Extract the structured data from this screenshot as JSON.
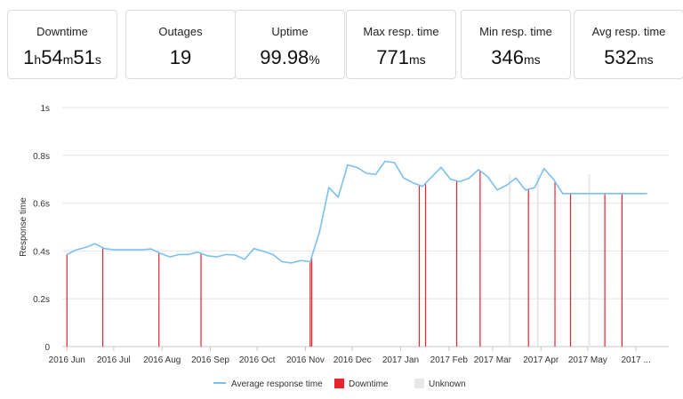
{
  "stats": [
    {
      "label": "Downtime",
      "parts": [
        [
          "1",
          "h"
        ],
        [
          "54",
          "m"
        ],
        [
          "51",
          "s"
        ]
      ]
    },
    {
      "label": "Outages",
      "parts": [
        [
          "19",
          ""
        ]
      ]
    },
    {
      "label": "Uptime",
      "parts": [
        [
          "99.98",
          "%"
        ]
      ]
    },
    {
      "label": "Max resp. time",
      "parts": [
        [
          "771",
          "ms"
        ]
      ]
    },
    {
      "label": "Min resp. time",
      "parts": [
        [
          "346",
          "ms"
        ]
      ]
    },
    {
      "label": "Avg resp. time",
      "parts": [
        [
          "532",
          "ms"
        ]
      ]
    }
  ],
  "colors": {
    "line": "#7cc0ef",
    "downtime": "#e8232d",
    "unknown": "#e8e8e8",
    "grid": "#e6e6e6",
    "axis": "#c8c8c8"
  },
  "chart_data": {
    "type": "line",
    "title": "",
    "ylabel": "Response time",
    "xlabel": "",
    "ylim": [
      0,
      1
    ],
    "yticks": [
      {
        "value": 0,
        "label": "0"
      },
      {
        "value": 0.2,
        "label": "0.2s"
      },
      {
        "value": 0.4,
        "label": "0.4s"
      },
      {
        "value": 0.6,
        "label": "0.6s"
      },
      {
        "value": 0.8,
        "label": "0.8s"
      },
      {
        "value": 1,
        "label": "1s"
      }
    ],
    "xlim": [
      "2016-05-29",
      "2017-06-22"
    ],
    "xticks": [
      {
        "date": "2016-06-01",
        "label": "2016 Jun"
      },
      {
        "date": "2016-07-01",
        "label": "2016 Jul"
      },
      {
        "date": "2016-08-01",
        "label": "2016 Aug"
      },
      {
        "date": "2016-09-01",
        "label": "2016 Sep"
      },
      {
        "date": "2016-10-01",
        "label": "2016 Oct"
      },
      {
        "date": "2016-11-01",
        "label": "2016 Nov"
      },
      {
        "date": "2016-12-01",
        "label": "2016 Dec"
      },
      {
        "date": "2017-01-01",
        "label": "2017 Jan"
      },
      {
        "date": "2017-02-01",
        "label": "2017 Feb"
      },
      {
        "date": "2017-03-01",
        "label": "2017 Mar"
      },
      {
        "date": "2017-04-01",
        "label": "2017 Apr"
      },
      {
        "date": "2017-05-01",
        "label": "2017 May"
      },
      {
        "date": "2017-06-01",
        "label": "2017 ..."
      }
    ],
    "legend_position": "bottom",
    "grid": true,
    "series": [
      {
        "name": "Average response time",
        "x": [
          "2016-06-01",
          "2016-06-07",
          "2016-06-13",
          "2016-06-19",
          "2016-06-25",
          "2016-07-01",
          "2016-07-07",
          "2016-07-13",
          "2016-07-19",
          "2016-07-25",
          "2016-07-31",
          "2016-08-06",
          "2016-08-12",
          "2016-08-18",
          "2016-08-24",
          "2016-08-30",
          "2016-09-05",
          "2016-09-11",
          "2016-09-17",
          "2016-09-23",
          "2016-09-29",
          "2016-10-05",
          "2016-10-11",
          "2016-10-17",
          "2016-10-23",
          "2016-10-29",
          "2016-11-04",
          "2016-11-10",
          "2016-11-16",
          "2016-11-22",
          "2016-11-28",
          "2016-12-04",
          "2016-12-10",
          "2016-12-16",
          "2016-12-22",
          "2016-12-28",
          "2017-01-03",
          "2017-01-09",
          "2017-01-15",
          "2017-01-21",
          "2017-01-27",
          "2017-02-02",
          "2017-02-08",
          "2017-02-14",
          "2017-02-20",
          "2017-02-26",
          "2017-03-04",
          "2017-03-10",
          "2017-03-16",
          "2017-03-22",
          "2017-03-28",
          "2017-04-03",
          "2017-04-09",
          "2017-04-15",
          "2017-04-21",
          "2017-04-27",
          "2017-05-03",
          "2017-05-09",
          "2017-05-15",
          "2017-05-21",
          "2017-05-27",
          "2017-06-02",
          "2017-06-08"
        ],
        "values": [
          0.385,
          0.405,
          0.415,
          0.43,
          0.41,
          0.405,
          0.405,
          0.405,
          0.405,
          0.408,
          0.39,
          0.375,
          0.385,
          0.385,
          0.395,
          0.38,
          0.375,
          0.385,
          0.383,
          0.365,
          0.41,
          0.398,
          0.385,
          0.355,
          0.35,
          0.36,
          0.355,
          0.48,
          0.665,
          0.625,
          0.76,
          0.75,
          0.725,
          0.72,
          0.775,
          0.77,
          0.705,
          0.685,
          0.67,
          0.71,
          0.75,
          0.7,
          0.69,
          0.705,
          0.74,
          0.71,
          0.655,
          0.675,
          0.705,
          0.655,
          0.665,
          0.745,
          0.7,
          0.64,
          0.64,
          0.64,
          0.64,
          0.64,
          0.64,
          0.64,
          0.64,
          0.64,
          0.64
        ]
      }
    ],
    "downtime_events": [
      "2016-06-01",
      "2016-06-24",
      "2016-07-30",
      "2016-08-26",
      "2016-11-04",
      "2016-11-05",
      "2017-01-13",
      "2017-01-17",
      "2017-02-06",
      "2017-02-21",
      "2017-03-24",
      "2017-04-10",
      "2017-04-20",
      "2017-05-12",
      "2017-05-23"
    ],
    "unknown_events": [
      "2017-03-12",
      "2017-03-30",
      "2017-05-02"
    ],
    "legend": [
      {
        "key": "line",
        "label": "Average response time"
      },
      {
        "key": "downtime",
        "label": "Downtime"
      },
      {
        "key": "unknown",
        "label": "Unknown"
      }
    ]
  }
}
